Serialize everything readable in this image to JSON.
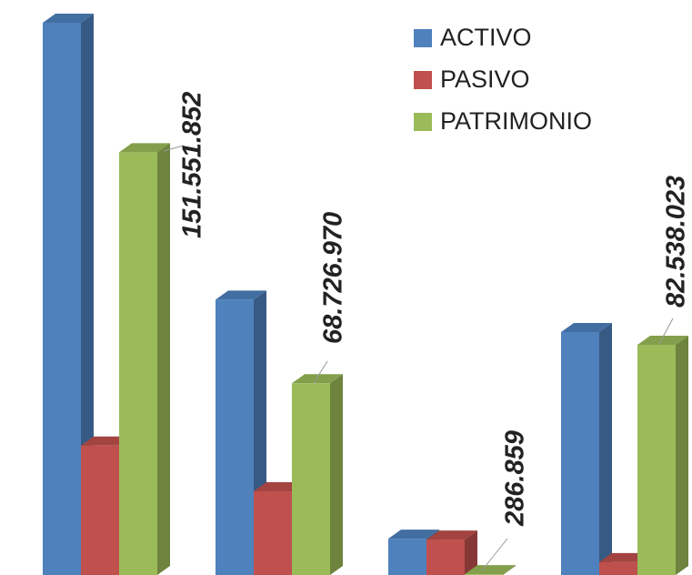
{
  "chart_data": {
    "type": "bar3d",
    "categories": [
      null,
      null,
      null,
      null
    ],
    "series": [
      {
        "name": "ACTIVO",
        "color": "#4f81bd",
        "values": [
          198000000,
          98700000,
          13000000,
          87100000
        ]
      },
      {
        "name": "PASIVO",
        "color": "#c0504d",
        "values": [
          46400000,
          30000000,
          12700000,
          4600000
        ]
      },
      {
        "name": "PATRIMONIO",
        "color": "#9bbb59",
        "values": [
          151551852,
          68726970,
          286859,
          82538023
        ],
        "value_labels": [
          "151.551.852",
          "68.726.970",
          "286.859",
          "82.538.023"
        ]
      }
    ],
    "legend": "top-right"
  }
}
